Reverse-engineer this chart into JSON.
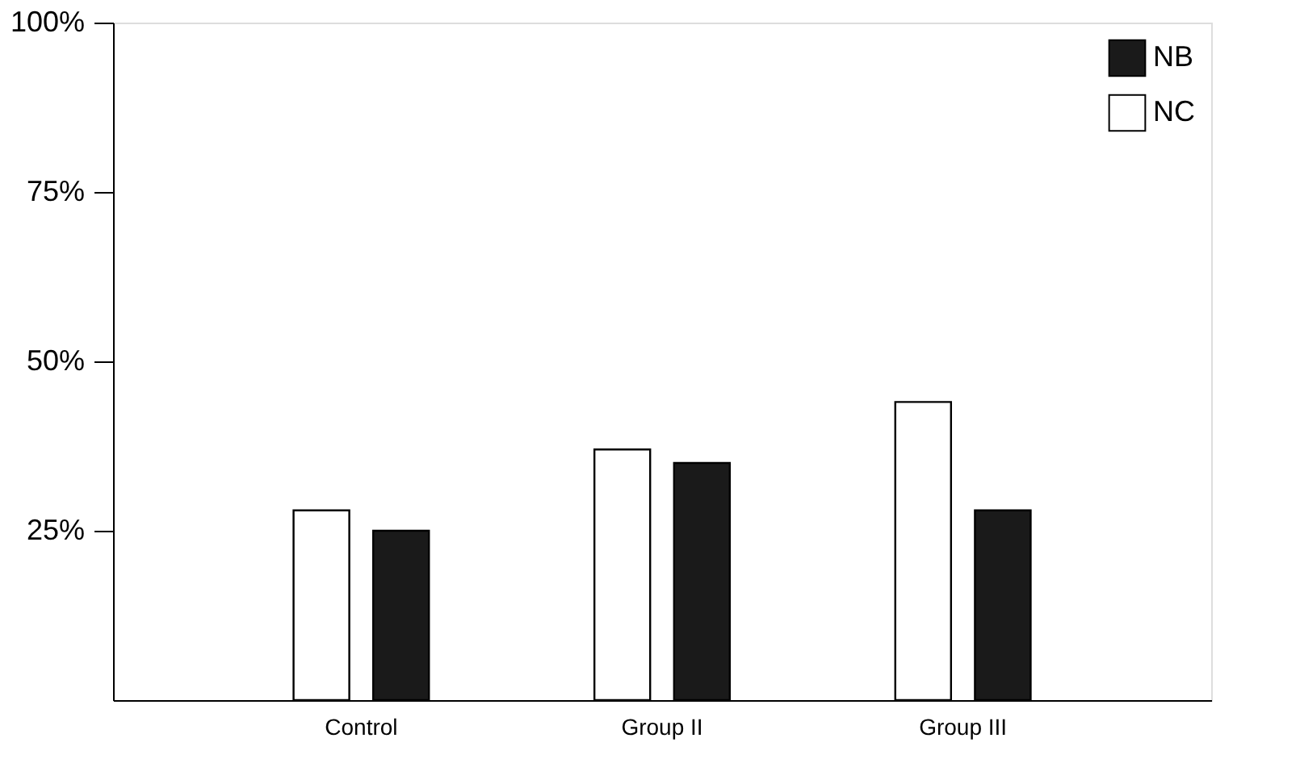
{
  "chart_data": {
    "type": "bar",
    "categories": [
      "Control",
      "Group II",
      "Group III"
    ],
    "series": [
      {
        "name": "NC",
        "color": "#ffffff",
        "values": [
          28,
          37,
          44
        ]
      },
      {
        "name": "NB",
        "color": "#1a1a1a",
        "values": [
          25,
          35,
          28
        ]
      }
    ],
    "ylim": [
      0,
      100
    ],
    "yticks": [
      {
        "value": 25,
        "label": "25%"
      },
      {
        "value": 50,
        "label": "50%"
      },
      {
        "value": 75,
        "label": "75%"
      },
      {
        "value": 100,
        "label": "100%"
      }
    ],
    "grid": false,
    "legend": "top right"
  }
}
